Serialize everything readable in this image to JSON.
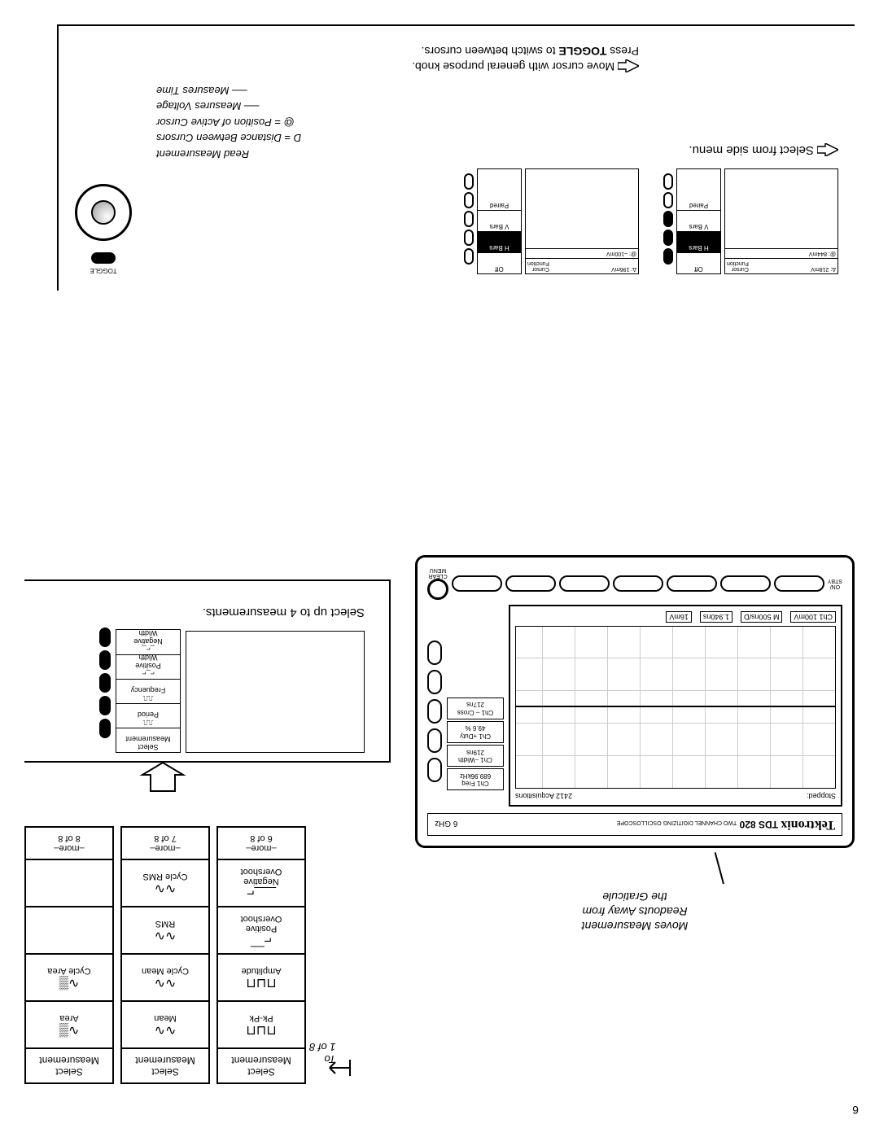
{
  "page_number": "6",
  "to_label": "To\n1 of 8",
  "measurement_columns": [
    {
      "header": "Select\nMeasurement",
      "cells": [
        {
          "glyph": "⊓⊔⊓",
          "label": "Pk-Pk"
        },
        {
          "glyph": "⊓⊔⊓",
          "label": "Amplitude"
        },
        {
          "glyph": "⌐‾‾‾",
          "label": "Positive\nOvershoot"
        },
        {
          "glyph": "___⌐",
          "label": "Negative\nOvershoot"
        }
      ],
      "more": "–more–\n6 of 8"
    },
    {
      "header": "Select\nMeasurement",
      "cells": [
        {
          "glyph": "∿∿",
          "label": "Mean"
        },
        {
          "glyph": "∿∿",
          "label": "Cycle Mean"
        },
        {
          "glyph": "∿∿",
          "label": "RMS"
        },
        {
          "glyph": "∿∿",
          "label": "Cycle RMS"
        }
      ],
      "more": "–more–\n7 of 8"
    },
    {
      "header": "Select\nMeasurement",
      "cells": [
        {
          "glyph": "∿▒",
          "label": "Area"
        },
        {
          "glyph": "∿▒",
          "label": "Cycle Area"
        },
        {
          "glyph": "",
          "label": ""
        },
        {
          "glyph": "",
          "label": ""
        }
      ],
      "more": "–more–\n8 of 8"
    }
  ],
  "select_box": {
    "side_rows": [
      "Select\nMeasurement",
      "⎍⎍\nPeriod",
      "⎍⎍\nFrequency",
      "⌐_⌐\nPositive\nWidth",
      "_⌐_\nNegative\nWidth"
    ],
    "caption": "Select up to 4 measurements."
  },
  "scope": {
    "callout": "Moves Measurement\nReadouts Away from\nthe Graticule",
    "brand": "Tektronix",
    "model": "TDS 820",
    "subtitle": "TWO CHANNEL DIGITIZING OSCILLOSCOPE",
    "ghz": "6 GHz",
    "status_left": "Stopped:",
    "status_right": "2412 Acquisitions",
    "readouts": [
      {
        "l1": "Ch1 Freq",
        "l2": "689.96kHz"
      },
      {
        "l1": "Ch1 –Width",
        "l2": "219ns"
      },
      {
        "l1": "Ch1 +Duty",
        "l2": "49.6 %"
      },
      {
        "l1": "Ch1 – Cross",
        "l2": "217ns"
      }
    ],
    "bottom_labels": [
      "Ch1 100mV",
      "M 500ns/D",
      "1.940ns",
      "16mV"
    ],
    "onstby": "ON/\nSTBY",
    "clear": "CLEAR\nMENU"
  },
  "cursor_section": {
    "left_caption": "Select from side menu.",
    "panel_top_a": "Δ: 218mV",
    "panel_top_b": "@: 844mV",
    "panel_top_c": "Cursor\nFunction",
    "panel2_top_a": "Δ: 196mV",
    "panel2_top_b": "@: –100mV",
    "menu_rows": [
      "Off",
      "H Bars",
      "V Bars",
      "Paired"
    ],
    "anno_title": "Read Measurement",
    "anno_d": "D  =  Distance Between Cursors",
    "anno_at": "@  =  Position of Active Cursor",
    "anno_hv": "Measures Voltage",
    "anno_time": "Measures Time",
    "toggle_label": "TOGGLE",
    "instr1": "Move cursor with general purpose knob.",
    "instr2_a": "Press ",
    "instr2_b": "TOGGLE",
    "instr2_c": " to switch between cursors."
  }
}
